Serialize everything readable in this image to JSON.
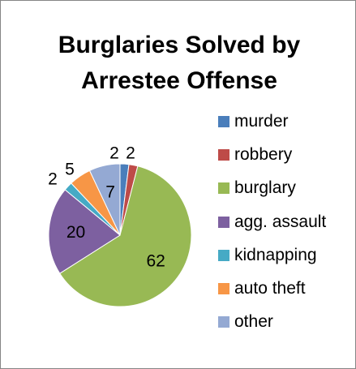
{
  "chart_data": {
    "type": "pie",
    "title_lines": [
      "Burglaries Solved by",
      "Arrestee Offense"
    ],
    "categories": [
      "murder",
      "robbery",
      "burglary",
      "agg. assault",
      "kidnapping",
      "auto theft",
      "other"
    ],
    "values": [
      2,
      2,
      62,
      20,
      2,
      5,
      7
    ],
    "labels": [
      "2",
      "2",
      "62",
      "20",
      "2",
      "5",
      "7"
    ],
    "colors": [
      "#4A7EBB",
      "#BE4B48",
      "#98B954",
      "#7D60A0",
      "#46AAC5",
      "#F79646",
      "#94A9D3"
    ],
    "legend_position": "right"
  }
}
